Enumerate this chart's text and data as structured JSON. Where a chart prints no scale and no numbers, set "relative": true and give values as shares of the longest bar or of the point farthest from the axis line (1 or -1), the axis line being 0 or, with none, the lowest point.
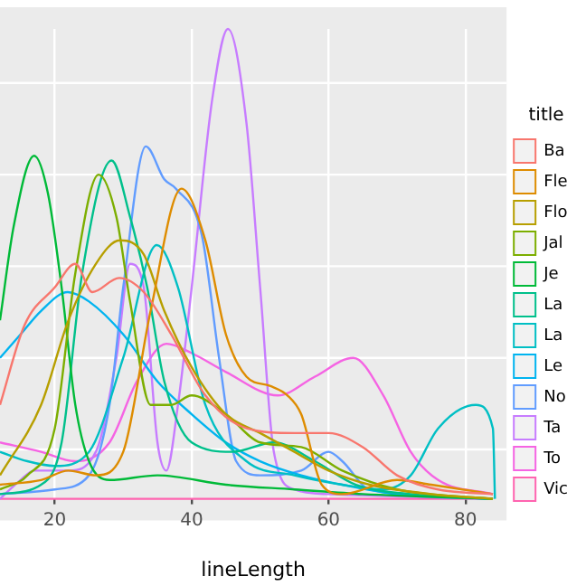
{
  "chart_data": {
    "type": "line",
    "relative": true,
    "xlabel": "lineLength",
    "legend_title": "title",
    "legend": "right",
    "grid": true,
    "xlim": [
      12,
      86
    ],
    "xticks": [
      20,
      40,
      60,
      80
    ],
    "tick_labels": "x",
    "series": [
      {
        "name": "Ba",
        "color": "#f8766d",
        "x": [
          12,
          15.6,
          20,
          23,
          25.5,
          29.4,
          33,
          37,
          42,
          48,
          55,
          60,
          65,
          70,
          76,
          84
        ],
        "values": [
          0.2,
          0.37,
          0.45,
          0.5,
          0.44,
          0.47,
          0.44,
          0.35,
          0.22,
          0.15,
          0.14,
          0.14,
          0.11,
          0.05,
          0.02,
          0.01
        ]
      },
      {
        "name": "Fle",
        "color": "#de8c00",
        "x": [
          12,
          18,
          22,
          26,
          30,
          34,
          38.5,
          42,
          45,
          48,
          51.5,
          54,
          56,
          59,
          62,
          70,
          75,
          84
        ],
        "values": [
          0.03,
          0.04,
          0.06,
          0.05,
          0.1,
          0.4,
          0.66,
          0.55,
          0.35,
          0.26,
          0.24,
          0.22,
          0.18,
          0.03,
          0.01,
          0.04,
          0.03,
          0.01
        ]
      },
      {
        "name": "Flo",
        "color": "#b79f00",
        "x": [
          12,
          18,
          22,
          26,
          29.5,
          33,
          36,
          40,
          45,
          50,
          55,
          60,
          66,
          75,
          84
        ],
        "values": [
          0.05,
          0.2,
          0.38,
          0.5,
          0.55,
          0.52,
          0.4,
          0.28,
          0.18,
          0.14,
          0.1,
          0.06,
          0.03,
          0.01,
          0
        ]
      },
      {
        "name": "Jal",
        "color": "#7cae00",
        "x": [
          12,
          16,
          20,
          23,
          26.4,
          29,
          31,
          34,
          37,
          40,
          45,
          50,
          56,
          62,
          70,
          84
        ],
        "values": [
          0.02,
          0.05,
          0.15,
          0.48,
          0.69,
          0.6,
          0.42,
          0.2,
          0.2,
          0.22,
          0.18,
          0.12,
          0.11,
          0.06,
          0.02,
          0
        ]
      },
      {
        "name": "Je",
        "color": "#00ba38",
        "x": [
          12,
          14,
          17,
          19,
          21,
          23,
          25,
          28,
          35,
          45,
          55,
          65,
          84
        ],
        "values": [
          0.38,
          0.58,
          0.73,
          0.65,
          0.45,
          0.2,
          0.08,
          0.04,
          0.05,
          0.03,
          0.02,
          0.01,
          0
        ]
      },
      {
        "name": "La",
        "color": "#00c08b",
        "x": [
          12,
          18,
          21,
          24,
          28.3,
          31,
          33.5,
          36,
          40,
          46,
          52,
          58,
          64,
          72,
          84
        ],
        "values": [
          0.01,
          0.03,
          0.12,
          0.48,
          0.72,
          0.6,
          0.45,
          0.25,
          0.12,
          0.1,
          0.12,
          0.08,
          0.03,
          0.01,
          0
        ]
      },
      {
        "name": "La",
        "color": "#00bfc4",
        "x": [
          12,
          16,
          20,
          25,
          30,
          34.9,
          38,
          42,
          48,
          55,
          62,
          68,
          72,
          76,
          81.5,
          84,
          84.3
        ],
        "values": [
          0.1,
          0.08,
          0.07,
          0.1,
          0.3,
          0.54,
          0.45,
          0.2,
          0.08,
          0.05,
          0.03,
          0.02,
          0.05,
          0.15,
          0.2,
          0.15,
          0
        ]
      },
      {
        "name": "Le",
        "color": "#00b4f0",
        "x": [
          12,
          15,
          18,
          21.9,
          25,
          30,
          35,
          40,
          45,
          50,
          56,
          62,
          70,
          84
        ],
        "values": [
          0.3,
          0.35,
          0.4,
          0.44,
          0.42,
          0.35,
          0.25,
          0.18,
          0.12,
          0.08,
          0.05,
          0.03,
          0.01,
          0
        ]
      },
      {
        "name": "No",
        "color": "#619cff",
        "x": [
          12,
          20,
          25,
          28,
          30,
          33.3,
          36,
          37.7,
          41.5,
          44,
          46.5,
          50,
          56,
          60,
          62,
          66,
          84
        ],
        "values": [
          0.01,
          0.02,
          0.05,
          0.2,
          0.45,
          0.75,
          0.68,
          0.66,
          0.56,
          0.3,
          0.08,
          0.05,
          0.06,
          0.1,
          0.08,
          0.02,
          0
        ]
      },
      {
        "name": "Ta",
        "color": "#c77cff",
        "x": [
          12,
          15,
          17,
          22,
          26,
          29,
          31,
          33,
          35,
          36.3,
          38,
          40,
          43,
          45.3,
          48,
          50,
          52,
          55,
          60,
          84
        ],
        "values": [
          0,
          0.04,
          0.06,
          0.06,
          0.1,
          0.3,
          0.5,
          0.45,
          0.12,
          0.06,
          0.2,
          0.45,
          0.85,
          1,
          0.8,
          0.45,
          0.1,
          0.02,
          0.01,
          0
        ]
      },
      {
        "name": "To",
        "color": "#f564e3",
        "x": [
          12,
          18,
          23,
          28,
          32,
          36.3,
          40,
          45,
          52.6,
          58,
          63.6,
          68,
          72,
          76,
          84
        ],
        "values": [
          0.12,
          0.1,
          0.08,
          0.12,
          0.25,
          0.33,
          0.31,
          0.27,
          0.22,
          0.26,
          0.3,
          0.22,
          0.1,
          0.04,
          0.01
        ]
      },
      {
        "name": "Vic",
        "color": "#ff64b0",
        "x": [
          12,
          84
        ],
        "values": [
          0,
          0
        ]
      }
    ]
  }
}
